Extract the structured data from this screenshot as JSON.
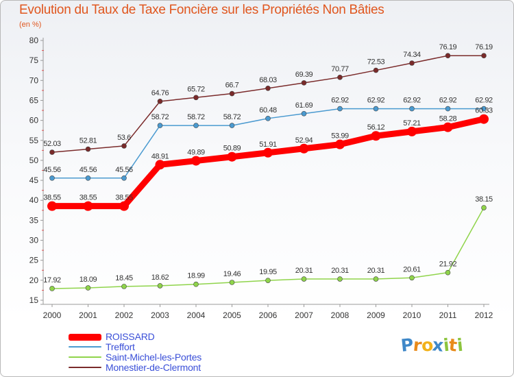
{
  "chart_data": {
    "type": "line",
    "title": "Evolution du Taux de Taxe Foncière sur les Propriétés Non Bâties",
    "subtitle": "(en %)",
    "ylim": [
      15,
      80
    ],
    "yticks": [
      15,
      20,
      25,
      30,
      35,
      40,
      45,
      50,
      55,
      60,
      65,
      70,
      75,
      80
    ],
    "grid": false,
    "legend_position": "bottom-left",
    "categories": [
      "2000",
      "2001",
      "2002",
      "2003",
      "2004",
      "2005",
      "2006",
      "2007",
      "2008",
      "2009",
      "2010",
      "2011",
      "2012"
    ],
    "series": [
      {
        "name": "ROISSARD",
        "color": "#ff0000",
        "values": [
          38.55,
          38.55,
          38.55,
          48.91,
          49.89,
          50.89,
          51.91,
          52.94,
          53.99,
          56.12,
          57.21,
          58.28,
          60.33
        ],
        "labels": [
          "38.55",
          "38.55",
          "38.55",
          "48.91",
          "49.89",
          "50.89",
          "51.91",
          "52.94",
          "53.99",
          "56.12",
          "57.21",
          "58.28",
          "60.33"
        ]
      },
      {
        "name": "Treffort",
        "color": "#4a9ad0",
        "values": [
          45.56,
          45.56,
          45.56,
          58.72,
          58.72,
          58.72,
          60.48,
          61.69,
          62.92,
          62.92,
          62.92,
          62.92,
          62.92
        ],
        "labels": [
          "45.56",
          "45.56",
          "45.56",
          "58.72",
          "58.72",
          "58.72",
          "60.48",
          "61.69",
          "62.92",
          "62.92",
          "62.92",
          "62.92",
          "62.92"
        ]
      },
      {
        "name": "Saint-Michel-les-Portes",
        "color": "#8fd44a",
        "values": [
          17.92,
          18.09,
          18.45,
          18.62,
          18.99,
          19.46,
          19.95,
          20.31,
          20.31,
          20.31,
          20.61,
          21.92,
          38.15
        ],
        "labels": [
          "17.92",
          "18.09",
          "18.45",
          "18.62",
          "18.99",
          "19.46",
          "19.95",
          "20.31",
          "20.31",
          "20.31",
          "20.61",
          "21.92",
          "38.15"
        ]
      },
      {
        "name": "Monestier-de-Clermont",
        "color": "#7a2a2a",
        "values": [
          52.03,
          52.81,
          53.6,
          64.76,
          65.72,
          66.7,
          68.03,
          69.39,
          70.77,
          72.53,
          74.34,
          76.19,
          76.19
        ],
        "labels": [
          "52.03",
          "52.81",
          "53.6",
          "64.76",
          "65.72",
          "66.7",
          "68.03",
          "69.39",
          "70.77",
          "72.53",
          "74.34",
          "76.19",
          "76.19"
        ]
      }
    ]
  },
  "logo": {
    "letters": [
      "P",
      "r",
      "o",
      "x",
      "i",
      "t",
      "i"
    ],
    "colors": [
      "#3f88c8",
      "#e88a1a",
      "#f2b21a",
      "#3f88c8",
      "#8cc43e",
      "#e88a1a",
      "#8cc43e"
    ]
  }
}
